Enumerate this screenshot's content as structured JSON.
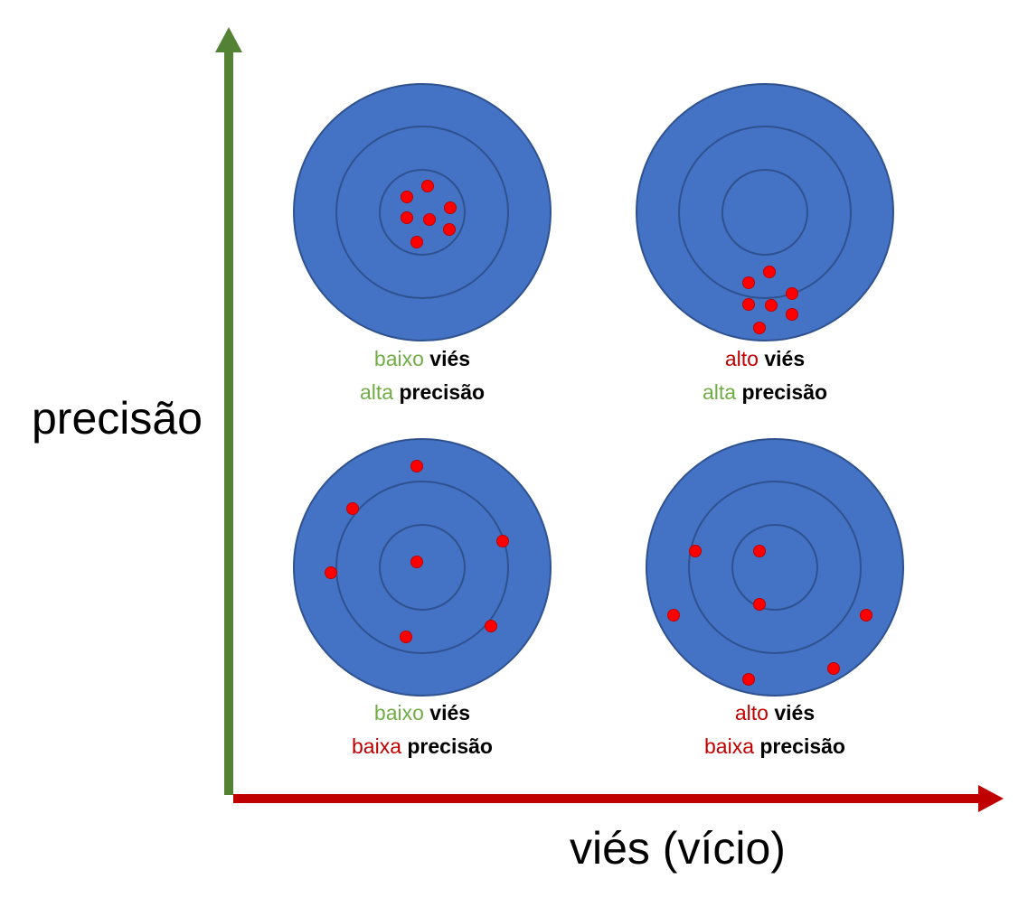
{
  "colors": {
    "target_fill": "#4472C4",
    "target_ring": "#2F528F",
    "hit": "#FF0000",
    "good": "#70AD47",
    "bad": "#C00000",
    "neutral": "#000000",
    "y_axis": "#548235",
    "x_axis": "#C00000"
  },
  "axes": {
    "y_label": "precisão",
    "x_label": "viés (vício)"
  },
  "panels": [
    {
      "bias": {
        "level": "baixo",
        "quality": "good",
        "noun": "viés"
      },
      "precision": {
        "level": "alta",
        "quality": "good",
        "noun": "precisão"
      },
      "hits": 7
    },
    {
      "bias": {
        "level": "alto",
        "quality": "bad",
        "noun": "viés"
      },
      "precision": {
        "level": "alta",
        "quality": "good",
        "noun": "precisão"
      },
      "hits": 7
    },
    {
      "bias": {
        "level": "baixo",
        "quality": "good",
        "noun": "viés"
      },
      "precision": {
        "level": "baixa",
        "quality": "bad",
        "noun": "precisão"
      },
      "hits": 7
    },
    {
      "bias": {
        "level": "alto",
        "quality": "bad",
        "noun": "viés"
      },
      "precision": {
        "level": "baixa",
        "quality": "bad",
        "noun": "precisão"
      },
      "hits": 7
    }
  ]
}
